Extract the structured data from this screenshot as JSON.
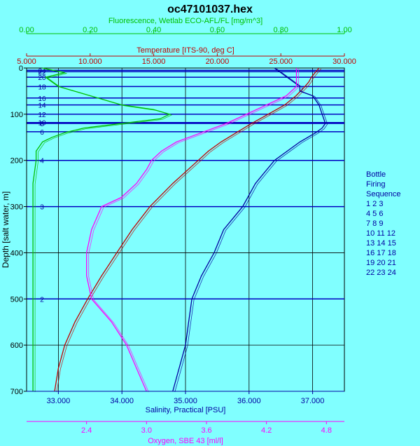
{
  "chart_data": {
    "type": "line",
    "title": "oc47101037.hex",
    "y_axis": {
      "label": "Depth [salt water, m]",
      "range": [
        0,
        700
      ],
      "ticks": [
        0,
        100,
        200,
        300,
        400,
        500,
        600,
        700
      ],
      "inverted": true
    },
    "axes": {
      "fluorescence": {
        "label": "Fluorescence, Wetlab ECO-AFL/FL [mg/m^3]",
        "range": [
          0,
          1
        ],
        "ticks": [
          "0.00",
          "0.20",
          "0.40",
          "0.60",
          "0.80",
          "1.00"
        ],
        "tick_values": [
          0,
          0.2,
          0.4,
          0.6,
          0.8,
          1.0
        ],
        "color": "#00c000",
        "position": "top"
      },
      "temperature": {
        "label": "Temperature [ITS-90, deg C]",
        "range": [
          5,
          30
        ],
        "ticks": [
          "5.000",
          "10.000",
          "15.000",
          "20.000",
          "25.000",
          "30.000"
        ],
        "tick_values": [
          5,
          10,
          15,
          20,
          25,
          30
        ],
        "color": "#c00000",
        "position": "top"
      },
      "salinity": {
        "label": "Salinity, Practical [PSU]",
        "range": [
          32.5,
          37.5
        ],
        "ticks": [
          "33.000",
          "34.000",
          "35.000",
          "36.000",
          "37.000"
        ],
        "tick_values": [
          33,
          34,
          35,
          36,
          37
        ],
        "color": "#0000a0",
        "position": "bottom"
      },
      "oxygen": {
        "label": "Oxygen, SBE 43 [ml/l]",
        "range": [
          1.8,
          4.98
        ],
        "ticks": [
          "2.4",
          "3.0",
          "3.6",
          "4.2",
          "4.8"
        ],
        "tick_values": [
          2.4,
          3.0,
          3.6,
          4.2,
          4.8
        ],
        "color": "#ff00ff",
        "position": "bottom"
      }
    },
    "series": [
      {
        "axis": "temperature",
        "color": "#c00000",
        "depth": [
          0,
          10,
          20,
          30,
          40,
          60,
          80,
          100,
          120,
          140,
          160,
          180,
          200,
          250,
          300,
          350,
          400,
          450,
          500,
          550,
          600,
          650,
          700
        ],
        "values": [
          28.0,
          27.7,
          27.4,
          27.2,
          26.9,
          26.2,
          25.3,
          24.0,
          22.7,
          21.5,
          20.3,
          19.3,
          18.5,
          16.5,
          14.7,
          13.3,
          12.1,
          10.9,
          9.8,
          8.8,
          8.0,
          7.5,
          7.2
        ]
      },
      {
        "axis": "salinity",
        "color": "#0000a0",
        "depth": [
          0,
          10,
          20,
          30,
          40,
          50,
          60,
          80,
          100,
          120,
          130,
          140,
          160,
          180,
          200,
          250,
          300,
          350,
          400,
          450,
          500,
          550,
          600,
          650,
          700
        ],
        "values": [
          36.4,
          36.5,
          36.6,
          36.7,
          36.8,
          36.8,
          37.0,
          37.1,
          37.15,
          37.2,
          37.15,
          37.05,
          36.8,
          36.6,
          36.4,
          36.1,
          35.9,
          35.6,
          35.45,
          35.25,
          35.1,
          35.05,
          35.0,
          34.9,
          34.8
        ]
      },
      {
        "axis": "oxygen",
        "color": "#ff00ff",
        "depth": [
          0,
          20,
          40,
          60,
          80,
          100,
          120,
          140,
          160,
          180,
          200,
          220,
          250,
          280,
          300,
          350,
          400,
          450,
          500,
          550,
          600,
          650,
          700
        ],
        "values": [
          4.5,
          4.5,
          4.5,
          4.4,
          4.2,
          4.0,
          3.8,
          3.55,
          3.3,
          3.15,
          3.05,
          3.0,
          2.9,
          2.75,
          2.55,
          2.45,
          2.4,
          2.4,
          2.45,
          2.65,
          2.8,
          2.9,
          3.0
        ]
      },
      {
        "axis": "fluorescence",
        "color": "#00c000",
        "depth": [
          0,
          10,
          20,
          30,
          40,
          50,
          60,
          70,
          80,
          90,
          100,
          110,
          120,
          130,
          140,
          150,
          160,
          170,
          180,
          200,
          250,
          300,
          400,
          500,
          600,
          700
        ],
        "values": [
          0.05,
          0.12,
          0.06,
          0.08,
          0.1,
          0.15,
          0.2,
          0.25,
          0.3,
          0.4,
          0.45,
          0.42,
          0.3,
          0.18,
          0.12,
          0.08,
          0.05,
          0.04,
          0.03,
          0.03,
          0.02,
          0.02,
          0.02,
          0.02,
          0.02,
          0.02
        ]
      }
    ],
    "bottles": [
      {
        "label": "24",
        "depth": 5
      },
      {
        "label": "22",
        "depth": 8
      },
      {
        "label": "20",
        "depth": 20
      },
      {
        "label": "18",
        "depth": 40
      },
      {
        "label": "16",
        "depth": 65
      },
      {
        "label": "14",
        "depth": 80
      },
      {
        "label": "12",
        "depth": 100
      },
      {
        "label": "10",
        "depth": 118
      },
      {
        "label": "8",
        "depth": 120
      },
      {
        "label": "6",
        "depth": 138
      },
      {
        "label": "4",
        "depth": 200
      },
      {
        "label": "3",
        "depth": 300
      },
      {
        "label": "2",
        "depth": 500
      }
    ],
    "legend": {
      "position": "right",
      "title_lines": [
        "Bottle",
        "Firing",
        "Sequence"
      ],
      "rows": [
        "1  2  3",
        "4  5  6",
        "7  8  9",
        "10 11 12",
        "13 14 15",
        "16 17 18",
        "19 20 21",
        "22 23 24"
      ]
    },
    "grid": true
  }
}
